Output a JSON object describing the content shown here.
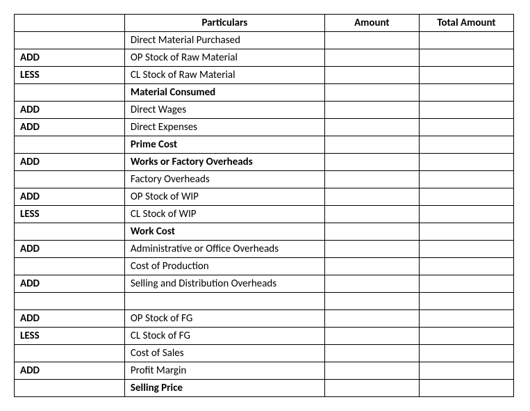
{
  "table": {
    "headers": {
      "op": "",
      "particulars": "Particulars",
      "amount": "Amount",
      "total": "Total Amount"
    },
    "rows": [
      {
        "op": "",
        "particulars": "Direct Material Purchased",
        "bold": false,
        "amount": "",
        "total": ""
      },
      {
        "op": "ADD",
        "particulars": "OP Stock of Raw Material",
        "bold": false,
        "amount": "",
        "total": ""
      },
      {
        "op": "LESS",
        "particulars": "CL Stock of Raw Material",
        "bold": false,
        "amount": "",
        "total": ""
      },
      {
        "op": "",
        "particulars": "Material Consumed",
        "bold": true,
        "amount": "",
        "total": ""
      },
      {
        "op": "ADD",
        "particulars": "Direct Wages",
        "bold": false,
        "amount": "",
        "total": ""
      },
      {
        "op": "ADD",
        "particulars": "Direct Expenses",
        "bold": false,
        "amount": "",
        "total": ""
      },
      {
        "op": "",
        "particulars": "Prime Cost",
        "bold": true,
        "amount": "",
        "total": ""
      },
      {
        "op": "ADD",
        "particulars": "Works or Factory Overheads",
        "bold": true,
        "amount": "",
        "total": ""
      },
      {
        "op": "",
        "particulars": "Factory Overheads",
        "bold": false,
        "amount": "",
        "total": ""
      },
      {
        "op": "ADD",
        "particulars": "OP Stock of WIP",
        "bold": false,
        "amount": "",
        "total": ""
      },
      {
        "op": "LESS",
        "particulars": "CL Stock of WIP",
        "bold": false,
        "amount": "",
        "total": ""
      },
      {
        "op": "",
        "particulars": "Work Cost",
        "bold": true,
        "amount": "",
        "total": ""
      },
      {
        "op": "ADD",
        "particulars": "Administrative or Office Overheads",
        "bold": false,
        "amount": "",
        "total": ""
      },
      {
        "op": "",
        "particulars": "Cost of Production",
        "bold": false,
        "amount": "",
        "total": ""
      },
      {
        "op": "ADD",
        "particulars": "Selling and Distribution Overheads",
        "bold": false,
        "amount": "",
        "total": ""
      },
      {
        "op": "",
        "particulars": "",
        "bold": false,
        "amount": "",
        "total": ""
      },
      {
        "op": "ADD",
        "particulars": "OP Stock of FG",
        "bold": false,
        "amount": "",
        "total": ""
      },
      {
        "op": "LESS",
        "particulars": "CL Stock of FG",
        "bold": false,
        "amount": "",
        "total": ""
      },
      {
        "op": "",
        "particulars": "Cost of Sales",
        "bold": false,
        "amount": "",
        "total": ""
      },
      {
        "op": "ADD",
        "particulars": "Profit Margin",
        "bold": false,
        "amount": "",
        "total": ""
      },
      {
        "op": "",
        "particulars": "Selling Price",
        "bold": true,
        "amount": "",
        "total": ""
      }
    ]
  },
  "style": {
    "border_color": "#000000",
    "background_color": "#ffffff",
    "text_color": "#000000",
    "font_family": "Calibri",
    "font_size_pt": 11
  }
}
